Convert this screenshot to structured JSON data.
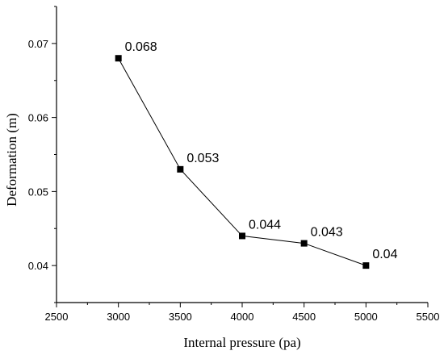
{
  "chart_data": {
    "type": "line",
    "title": "",
    "xlabel": "Internal pressure (pa)",
    "ylabel": "Deformation  (m)",
    "xlim": [
      2500,
      5500
    ],
    "ylim": [
      0.035,
      0.075
    ],
    "x_ticks": [
      2500,
      3000,
      3500,
      4000,
      4500,
      5000,
      5500
    ],
    "x_tick_labels": [
      "2500",
      "3000",
      "3500",
      "4000",
      "4500",
      "5000",
      "5500"
    ],
    "y_ticks": [
      0.04,
      0.05,
      0.06,
      0.07
    ],
    "y_tick_labels": [
      "0.04",
      "0.05",
      "0.06",
      "0.07"
    ],
    "grid": false,
    "legend": "none",
    "series": [
      {
        "x": [
          3000,
          3500,
          4000,
          4500,
          5000
        ],
        "values": [
          0.068,
          0.053,
          0.044,
          0.043,
          0.04
        ],
        "data_labels": [
          "0.068",
          "0.053",
          "0.044",
          "0.043",
          "0.04"
        ],
        "color": "#000000",
        "marker": "square"
      }
    ]
  }
}
